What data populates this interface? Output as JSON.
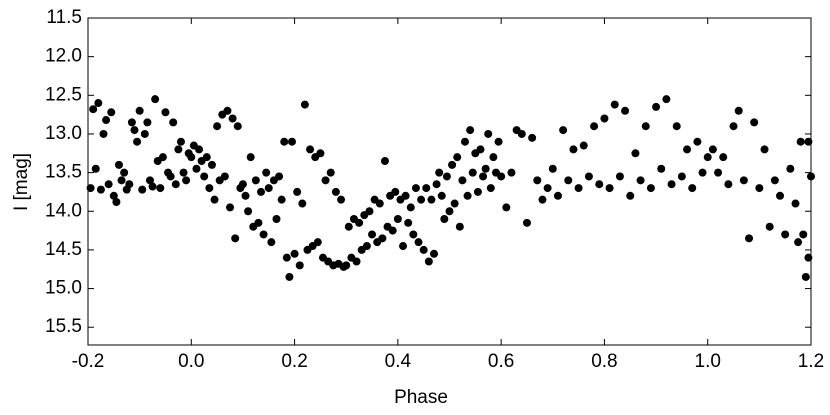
{
  "chart_data": {
    "type": "scatter",
    "xlabel": "Phase",
    "ylabel": "I [mag]",
    "color": "#000000",
    "xlim": [
      -0.2,
      1.2
    ],
    "ylim": [
      15.73,
      11.5
    ],
    "xticks": [
      -0.2,
      {
        "value": 0,
        "label": "0.0"
      },
      0.2,
      0.4,
      0.6,
      0.8,
      {
        "value": 1,
        "label": "1.0"
      },
      1.2
    ],
    "yticks": [
      11.5,
      {
        "value": 12,
        "label": "12.0"
      },
      12.5,
      {
        "value": 13,
        "label": "13.0"
      },
      13.5,
      {
        "value": 14,
        "label": "14.0"
      },
      14.5,
      {
        "value": 15,
        "label": "15.0"
      },
      15.5
    ],
    "x": [
      -0.195,
      -0.19,
      -0.185,
      -0.18,
      -0.175,
      -0.17,
      -0.165,
      -0.16,
      -0.155,
      -0.15,
      -0.145,
      -0.14,
      -0.135,
      -0.13,
      -0.125,
      -0.12,
      -0.115,
      -0.11,
      -0.105,
      -0.1,
      -0.095,
      -0.09,
      -0.085,
      -0.08,
      -0.075,
      -0.07,
      -0.065,
      -0.06,
      -0.055,
      -0.05,
      -0.045,
      -0.04,
      -0.035,
      -0.03,
      -0.025,
      -0.02,
      -0.015,
      -0.01,
      -0.005,
      0.0,
      0.005,
      0.01,
      0.015,
      0.02,
      0.025,
      0.03,
      0.035,
      0.04,
      0.045,
      0.05,
      0.055,
      0.06,
      0.065,
      0.07,
      0.075,
      0.08,
      0.085,
      0.09,
      0.095,
      0.1,
      0.105,
      0.11,
      0.115,
      0.12,
      0.125,
      0.13,
      0.135,
      0.14,
      0.145,
      0.15,
      0.155,
      0.16,
      0.165,
      0.17,
      0.175,
      0.18,
      0.185,
      0.19,
      0.195,
      0.2,
      0.205,
      0.21,
      0.215,
      0.22,
      0.225,
      0.23,
      0.235,
      0.24,
      0.245,
      0.25,
      0.255,
      0.26,
      0.265,
      0.27,
      0.275,
      0.28,
      0.285,
      0.29,
      0.295,
      0.3,
      0.305,
      0.31,
      0.315,
      0.32,
      0.325,
      0.33,
      0.335,
      0.34,
      0.345,
      0.35,
      0.355,
      0.36,
      0.365,
      0.37,
      0.375,
      0.38,
      0.385,
      0.39,
      0.395,
      0.4,
      0.405,
      0.41,
      0.415,
      0.42,
      0.425,
      0.43,
      0.435,
      0.44,
      0.445,
      0.45,
      0.455,
      0.46,
      0.465,
      0.47,
      0.475,
      0.48,
      0.485,
      0.49,
      0.495,
      0.5,
      0.505,
      0.51,
      0.515,
      0.52,
      0.525,
      0.53,
      0.535,
      0.54,
      0.545,
      0.55,
      0.555,
      0.56,
      0.565,
      0.57,
      0.575,
      0.58,
      0.585,
      0.59,
      0.595,
      0.6,
      0.61,
      0.62,
      0.63,
      0.64,
      0.65,
      0.66,
      0.67,
      0.68,
      0.69,
      0.7,
      0.71,
      0.72,
      0.73,
      0.74,
      0.75,
      0.76,
      0.77,
      0.78,
      0.79,
      0.8,
      0.81,
      0.82,
      0.83,
      0.84,
      0.85,
      0.86,
      0.87,
      0.88,
      0.89,
      0.9,
      0.91,
      0.92,
      0.93,
      0.94,
      0.95,
      0.96,
      0.97,
      0.98,
      0.99,
      1.0,
      1.01,
      1.02,
      1.03,
      1.04,
      1.05,
      1.06,
      1.07,
      1.08,
      1.09,
      1.1,
      1.11,
      1.12,
      1.13,
      1.14,
      1.15,
      1.16,
      1.17,
      1.18,
      1.185,
      1.19,
      1.195,
      1.2,
      1.195,
      1.175
    ],
    "values": [
      13.7,
      12.68,
      13.45,
      12.6,
      13.72,
      13.0,
      12.82,
      13.65,
      12.72,
      13.8,
      13.88,
      13.4,
      13.6,
      13.5,
      13.72,
      13.65,
      12.85,
      12.95,
      13.1,
      12.7,
      13.72,
      13.0,
      12.85,
      13.6,
      13.68,
      12.55,
      13.35,
      13.7,
      13.3,
      12.72,
      13.5,
      13.55,
      12.85,
      13.65,
      13.2,
      13.1,
      13.5,
      13.6,
      13.25,
      13.3,
      13.15,
      13.45,
      13.2,
      13.35,
      13.55,
      13.3,
      13.7,
      13.4,
      13.85,
      12.9,
      13.6,
      12.75,
      13.55,
      12.7,
      13.95,
      12.8,
      14.35,
      12.9,
      13.7,
      13.65,
      13.8,
      14.0,
      13.3,
      14.2,
      13.6,
      14.15,
      13.75,
      14.3,
      13.5,
      13.7,
      14.4,
      13.6,
      14.1,
      13.55,
      13.85,
      13.1,
      14.6,
      14.85,
      13.1,
      14.55,
      13.75,
      14.7,
      13.9,
      12.62,
      14.5,
      13.2,
      14.45,
      13.3,
      14.4,
      13.25,
      14.6,
      13.6,
      14.65,
      13.5,
      14.7,
      13.75,
      14.68,
      13.85,
      14.72,
      14.7,
      14.2,
      14.6,
      14.1,
      14.65,
      14.15,
      14.5,
      14.05,
      14.45,
      14.0,
      14.3,
      13.85,
      14.4,
      13.9,
      14.35,
      13.35,
      14.2,
      13.8,
      14.25,
      13.75,
      14.1,
      13.85,
      14.45,
      13.8,
      14.15,
      13.95,
      14.3,
      13.7,
      14.4,
      13.85,
      14.5,
      13.7,
      14.65,
      13.85,
      14.55,
      13.65,
      13.5,
      13.8,
      14.1,
      13.55,
      14.0,
      13.4,
      13.9,
      13.3,
      14.2,
      13.6,
      13.1,
      13.8,
      12.95,
      13.5,
      13.25,
      13.75,
      13.2,
      13.55,
      13.45,
      13.0,
      13.7,
      13.3,
      13.5,
      13.1,
      13.55,
      13.95,
      13.5,
      12.95,
      13.0,
      14.15,
      13.05,
      13.6,
      13.85,
      13.7,
      13.45,
      13.8,
      12.95,
      13.6,
      13.2,
      13.7,
      13.15,
      13.55,
      12.9,
      13.65,
      12.8,
      13.7,
      12.62,
      13.55,
      12.7,
      13.8,
      13.25,
      13.6,
      12.9,
      13.7,
      12.65,
      13.45,
      12.55,
      13.65,
      12.9,
      13.55,
      13.2,
      13.7,
      13.1,
      13.5,
      13.3,
      13.2,
      13.5,
      13.3,
      13.65,
      12.9,
      12.7,
      13.6,
      14.35,
      12.85,
      13.7,
      13.2,
      14.2,
      13.6,
      13.8,
      14.3,
      13.45,
      13.9,
      13.1,
      14.3,
      14.85,
      13.1,
      13.55,
      14.6,
      14.4
    ]
  }
}
